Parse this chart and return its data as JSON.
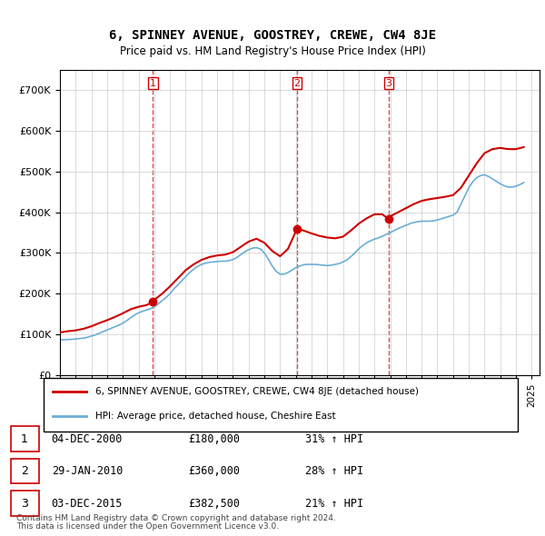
{
  "title": "6, SPINNEY AVENUE, GOOSTREY, CREWE, CW4 8JE",
  "subtitle": "Price paid vs. HM Land Registry's House Price Index (HPI)",
  "legend_line1": "6, SPINNEY AVENUE, GOOSTREY, CREWE, CW4 8JE (detached house)",
  "legend_line2": "HPI: Average price, detached house, Cheshire East",
  "footer1": "Contains HM Land Registry data © Crown copyright and database right 2024.",
  "footer2": "This data is licensed under the Open Government Licence v3.0.",
  "transactions": [
    {
      "num": 1,
      "date": "04-DEC-2000",
      "price": "£180,000",
      "change": "31% ↑ HPI",
      "year": 2000.92
    },
    {
      "num": 2,
      "date": "29-JAN-2010",
      "price": "£360,000",
      "change": "28% ↑ HPI",
      "year": 2010.08
    },
    {
      "num": 3,
      "date": "03-DEC-2015",
      "price": "£382,500",
      "change": "21% ↑ HPI",
      "year": 2015.92
    }
  ],
  "transaction_prices": [
    180000,
    360000,
    382500
  ],
  "hpi_color": "#6baed6",
  "price_color": "#cc0000",
  "dashed_color": "#cc0000",
  "ylim": [
    0,
    750000
  ],
  "yticks": [
    0,
    100000,
    200000,
    300000,
    400000,
    500000,
    600000,
    700000
  ],
  "xmin": 1995.0,
  "xmax": 2025.5,
  "background_color": "#ffffff",
  "grid_color": "#cccccc",
  "hpi_data_x": [
    1995.0,
    1995.25,
    1995.5,
    1995.75,
    1996.0,
    1996.25,
    1996.5,
    1996.75,
    1997.0,
    1997.25,
    1997.5,
    1997.75,
    1998.0,
    1998.25,
    1998.5,
    1998.75,
    1999.0,
    1999.25,
    1999.5,
    1999.75,
    2000.0,
    2000.25,
    2000.5,
    2000.75,
    2001.0,
    2001.25,
    2001.5,
    2001.75,
    2002.0,
    2002.25,
    2002.5,
    2002.75,
    2003.0,
    2003.25,
    2003.5,
    2003.75,
    2004.0,
    2004.25,
    2004.5,
    2004.75,
    2005.0,
    2005.25,
    2005.5,
    2005.75,
    2006.0,
    2006.25,
    2006.5,
    2006.75,
    2007.0,
    2007.25,
    2007.5,
    2007.75,
    2008.0,
    2008.25,
    2008.5,
    2008.75,
    2009.0,
    2009.25,
    2009.5,
    2009.75,
    2010.0,
    2010.25,
    2010.5,
    2010.75,
    2011.0,
    2011.25,
    2011.5,
    2011.75,
    2012.0,
    2012.25,
    2012.5,
    2012.75,
    2013.0,
    2013.25,
    2013.5,
    2013.75,
    2014.0,
    2014.25,
    2014.5,
    2014.75,
    2015.0,
    2015.25,
    2015.5,
    2015.75,
    2016.0,
    2016.25,
    2016.5,
    2016.75,
    2017.0,
    2017.25,
    2017.5,
    2017.75,
    2018.0,
    2018.25,
    2018.5,
    2018.75,
    2019.0,
    2019.25,
    2019.5,
    2019.75,
    2020.0,
    2020.25,
    2020.5,
    2020.75,
    2021.0,
    2021.25,
    2021.5,
    2021.75,
    2022.0,
    2022.25,
    2022.5,
    2022.75,
    2023.0,
    2023.25,
    2023.5,
    2023.75,
    2024.0,
    2024.25,
    2024.5
  ],
  "hpi_data_y": [
    88000,
    87000,
    87500,
    88000,
    89000,
    90000,
    91000,
    93000,
    96000,
    99000,
    103000,
    107000,
    111000,
    115000,
    119000,
    123000,
    128000,
    134000,
    141000,
    148000,
    153000,
    157000,
    160000,
    163000,
    168000,
    175000,
    183000,
    191000,
    200000,
    212000,
    222000,
    232000,
    242000,
    252000,
    260000,
    267000,
    272000,
    275000,
    277000,
    278000,
    279000,
    280000,
    280000,
    281000,
    284000,
    289000,
    296000,
    303000,
    308000,
    312000,
    313000,
    310000,
    300000,
    285000,
    268000,
    255000,
    248000,
    248000,
    252000,
    258000,
    264000,
    268000,
    271000,
    272000,
    272000,
    272000,
    271000,
    270000,
    269000,
    270000,
    272000,
    274000,
    278000,
    283000,
    291000,
    300000,
    310000,
    318000,
    325000,
    330000,
    334000,
    337000,
    341000,
    346000,
    350000,
    355000,
    360000,
    364000,
    368000,
    372000,
    375000,
    377000,
    378000,
    378000,
    378000,
    379000,
    381000,
    384000,
    387000,
    390000,
    393000,
    400000,
    420000,
    440000,
    460000,
    475000,
    485000,
    490000,
    492000,
    488000,
    482000,
    476000,
    470000,
    465000,
    462000,
    462000,
    464000,
    468000,
    473000
  ],
  "price_data_x": [
    1995.0,
    1995.5,
    1996.0,
    1996.5,
    1997.0,
    1997.5,
    1998.0,
    1998.5,
    1999.0,
    1999.5,
    2000.0,
    2000.5,
    2000.92,
    2001.0,
    2001.5,
    2002.0,
    2002.5,
    2003.0,
    2003.5,
    2004.0,
    2004.5,
    2005.0,
    2005.5,
    2006.0,
    2006.5,
    2007.0,
    2007.5,
    2008.0,
    2008.5,
    2009.0,
    2009.5,
    2010.08,
    2010.5,
    2011.0,
    2011.5,
    2012.0,
    2012.5,
    2013.0,
    2013.5,
    2014.0,
    2014.5,
    2015.0,
    2015.5,
    2015.92,
    2016.0,
    2016.5,
    2017.0,
    2017.5,
    2018.0,
    2018.5,
    2019.0,
    2019.5,
    2020.0,
    2020.5,
    2021.0,
    2021.5,
    2022.0,
    2022.5,
    2023.0,
    2023.5,
    2024.0,
    2024.5
  ],
  "price_data_y": [
    105000,
    108000,
    110000,
    114000,
    120000,
    128000,
    135000,
    143000,
    152000,
    162000,
    168000,
    172000,
    180000,
    185000,
    200000,
    218000,
    238000,
    258000,
    272000,
    283000,
    290000,
    294000,
    296000,
    302000,
    315000,
    328000,
    335000,
    325000,
    305000,
    292000,
    310000,
    360000,
    355000,
    348000,
    342000,
    338000,
    336000,
    340000,
    355000,
    372000,
    385000,
    395000,
    395000,
    382500,
    390000,
    400000,
    410000,
    420000,
    428000,
    432000,
    435000,
    438000,
    442000,
    460000,
    490000,
    520000,
    545000,
    555000,
    558000,
    555000,
    555000,
    560000
  ]
}
